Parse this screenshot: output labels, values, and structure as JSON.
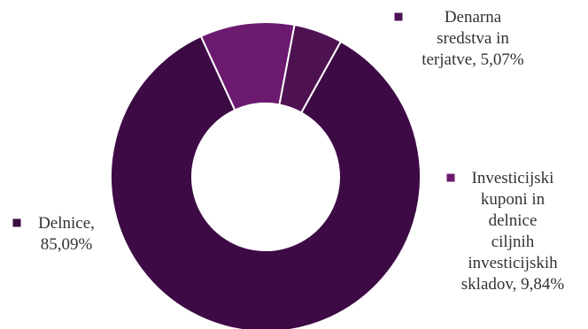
{
  "chart_data": {
    "type": "donut",
    "title": "",
    "slices": [
      {
        "lines": [
          "Delnice,",
          "85,09%"
        ],
        "name": "Delnice",
        "value": 85.09,
        "value_label": "85,09%",
        "color": "#3d0a45"
      },
      {
        "lines": [
          "Investicijski",
          "kuponi in",
          "delnice",
          "ciljnih",
          "investicijskih",
          "skladov, 9,84%"
        ],
        "name": "Investicijski kuponi in delnice ciljnih investicijskih skladov",
        "value": 9.84,
        "value_label": "9,84%",
        "color": "#6b1a70"
      },
      {
        "lines": [
          "Denarna",
          "sredstva in",
          "terjatve, 5,07%"
        ],
        "name": "Denarna sredstva in terjatve",
        "value": 5.07,
        "value_label": "5,07%",
        "color": "#4e1252"
      }
    ]
  }
}
